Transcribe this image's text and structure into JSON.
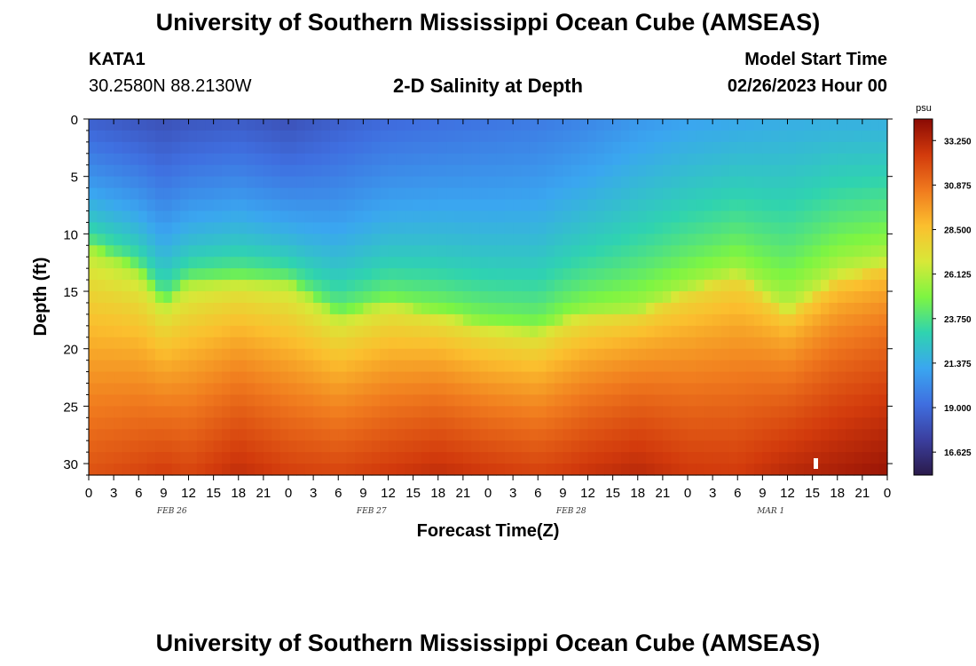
{
  "header": {
    "title": "University of Southern Mississippi Ocean Cube (AMSEAS)",
    "station": "KATA1",
    "coords": "30.2580N  88.2130W",
    "subtitle": "2-D Salinity at Depth",
    "model_start_label": "Model Start Time",
    "model_start_value": "02/26/2023 Hour 00"
  },
  "footer": {
    "title": "University of Southern Mississippi Ocean Cube (AMSEAS)"
  },
  "colors": {
    "colormap": [
      "#2a1a4a",
      "#3b3f9f",
      "#3f6fe0",
      "#3aa6f0",
      "#2fd3b0",
      "#7df542",
      "#d8e838",
      "#fbbf2e",
      "#f07a1e",
      "#d23a0c",
      "#8a0a04"
    ]
  },
  "chart_data": {
    "type": "heatmap",
    "title": "2-D Salinity at Depth",
    "xlabel": "Forecast Time(Z)",
    "ylabel": "Depth (ft)",
    "x_ticks": [
      "0",
      "3",
      "6",
      "9",
      "12",
      "15",
      "18",
      "21",
      "0",
      "3",
      "6",
      "9",
      "12",
      "15",
      "18",
      "21",
      "0",
      "3",
      "6",
      "9",
      "12",
      "15",
      "18",
      "21",
      "0",
      "3",
      "6",
      "9",
      "12",
      "15",
      "18",
      "21",
      "0"
    ],
    "x_hours_range": [
      0,
      96
    ],
    "date_labels": [
      {
        "label": "FEB 26",
        "hour": 10
      },
      {
        "label": "FEB 27",
        "hour": 34
      },
      {
        "label": "FEB 28",
        "hour": 58
      },
      {
        "label": "MAR 1",
        "hour": 82
      }
    ],
    "y_ticks": [
      0,
      5,
      10,
      15,
      20,
      25,
      30
    ],
    "ylim": [
      0,
      31
    ],
    "colorbar": {
      "units": "psu",
      "labels": [
        "33.250",
        "30.875",
        "28.500",
        "26.125",
        "23.750",
        "21.375",
        "19.000",
        "16.625"
      ],
      "range": [
        15.4,
        34.4
      ]
    },
    "salinity_model": {
      "description": "Salinity (psu) vs forecast hour; halocline depth in ft and surface/bottom values at control hours",
      "hours": [
        0,
        6,
        9,
        12,
        18,
        24,
        30,
        36,
        42,
        48,
        54,
        57,
        60,
        66,
        72,
        78,
        84,
        90,
        96
      ],
      "halocline": [
        11,
        13,
        16,
        14,
        14,
        14,
        17,
        16,
        17,
        18,
        18.5,
        17.5,
        17,
        17,
        15,
        13.5,
        17,
        14,
        13
      ],
      "surface": [
        18.6,
        18.2,
        18.0,
        18.2,
        18.4,
        18.0,
        18.6,
        19.0,
        19.2,
        19.4,
        19.6,
        19.8,
        20.0,
        20.6,
        21.0,
        21.2,
        21.4,
        21.5,
        21.5
      ],
      "bottom": [
        31.8,
        32.2,
        32.5,
        32.2,
        33.0,
        32.4,
        32.2,
        32.6,
        33.0,
        32.6,
        32.3,
        32.5,
        32.8,
        33.2,
        32.6,
        32.5,
        33.2,
        33.6,
        34.0
      ]
    }
  }
}
